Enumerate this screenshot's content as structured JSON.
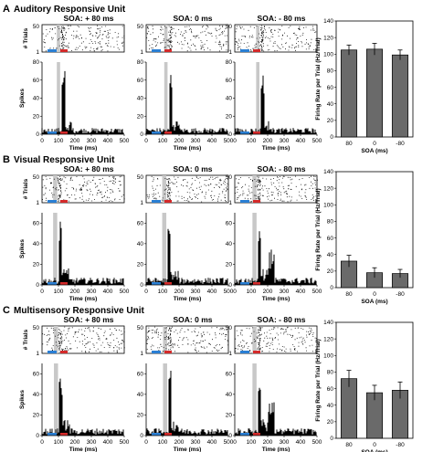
{
  "panels": [
    {
      "letter": "A",
      "title": "Auditory Responsive Unit",
      "soa_titles": [
        "SOA: + 80 ms",
        "SOA: 0 ms",
        "SOA: - 80 ms"
      ],
      "bar_values": [
        105,
        106,
        99
      ],
      "bar_errors": [
        6,
        7,
        6
      ],
      "raster_ticks": [
        "50",
        "1"
      ],
      "raster_ylabel": "# Trials",
      "psth_ticks": [
        "80",
        "60",
        "40",
        "20",
        "0"
      ],
      "psth_ylabel": "Spikes",
      "stim_centers": [
        100,
        120,
        140
      ],
      "stim_width": 20
    },
    {
      "letter": "B",
      "title": "Visual Responsive Unit",
      "soa_titles": [
        "SOA: + 80 ms",
        "SOA: 0 ms",
        "SOA: - 80 ms"
      ],
      "bar_values": [
        32,
        18,
        17
      ],
      "bar_errors": [
        7,
        6,
        5
      ],
      "raster_ticks": [
        "50",
        "1"
      ],
      "raster_ylabel": "# Trials",
      "psth_ticks": [
        "60",
        "40",
        "20",
        "0"
      ],
      "psth_ylabel": "Spikes",
      "stim_centers": [
        80,
        110,
        120
      ],
      "stim_width": 25
    },
    {
      "letter": "C",
      "title": "Multisensory Responsive Unit",
      "soa_titles": [
        "SOA: + 80 ms",
        "SOA: 0 ms",
        "SOA: - 80 ms"
      ],
      "bar_values": [
        72,
        55,
        58
      ],
      "bar_errors": [
        10,
        9,
        10
      ],
      "raster_ticks": [
        "50",
        "1"
      ],
      "raster_ylabel": "# Trials",
      "psth_ticks": [
        "60",
        "40",
        "20",
        "0"
      ],
      "psth_ylabel": "Spikes",
      "stim_centers": [
        85,
        115,
        120
      ],
      "stim_width": 25
    }
  ],
  "time_ticks": [
    "0",
    "100",
    "200",
    "300",
    "400",
    "500"
  ],
  "time_label": "Time (ms)",
  "bar_categories": [
    "80",
    "0",
    "-80"
  ],
  "bar_xlabel": "SOA (ms)",
  "bar_ylabel": "Firing Rate per Trial (Hz/Trial)",
  "bar_yticks": [
    "0",
    "20",
    "40",
    "60",
    "80",
    "100",
    "120",
    "140"
  ],
  "chart_data": [
    {
      "type": "bar",
      "title": "Auditory Responsive Unit",
      "categories": [
        "80",
        "0",
        "-80"
      ],
      "values": [
        105,
        106,
        99
      ],
      "xlabel": "SOA (ms)",
      "ylabel": "Firing Rate per Trial (Hz/Trial)",
      "ylim": [
        0,
        140
      ]
    },
    {
      "type": "bar",
      "title": "Visual Responsive Unit",
      "categories": [
        "80",
        "0",
        "-80"
      ],
      "values": [
        32,
        18,
        17
      ],
      "xlabel": "SOA (ms)",
      "ylabel": "Firing Rate per Trial (Hz/Trial)",
      "ylim": [
        0,
        140
      ]
    },
    {
      "type": "bar",
      "title": "Multisensory Responsive Unit",
      "categories": [
        "80",
        "0",
        "-80"
      ],
      "values": [
        72,
        55,
        58
      ],
      "xlabel": "SOA (ms)",
      "ylabel": "Firing Rate per Trial (Hz/Trial)",
      "ylim": [
        0,
        140
      ]
    }
  ]
}
